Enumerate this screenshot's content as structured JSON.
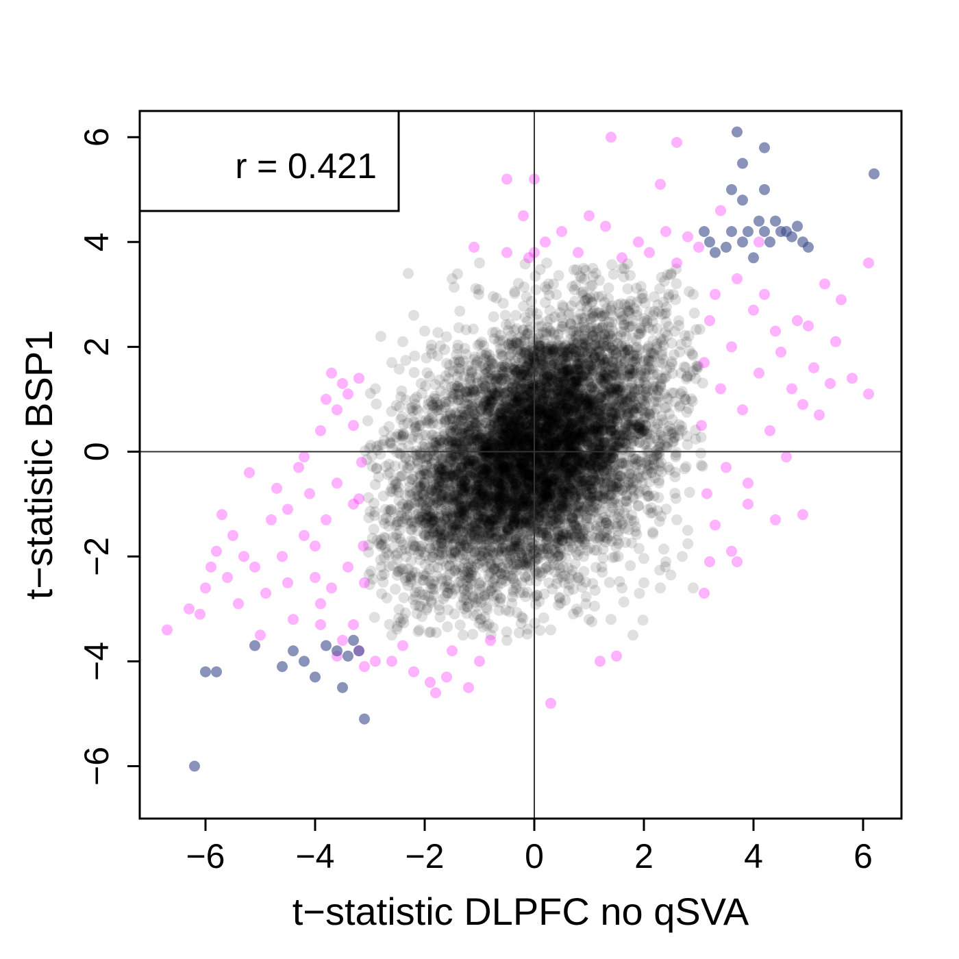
{
  "chart_data": {
    "type": "scatter",
    "title": "",
    "xlabel": "t−statistic DLPFC no qSVA",
    "ylabel": "t−statistic BSP1",
    "xlim": [
      -7.2,
      6.7
    ],
    "ylim": [
      -7.0,
      6.5
    ],
    "xticks": [
      {
        "value": -6,
        "label": "−6"
      },
      {
        "value": -4,
        "label": "−4"
      },
      {
        "value": -2,
        "label": "−2"
      },
      {
        "value": 0,
        "label": "0"
      },
      {
        "value": 2,
        "label": "2"
      },
      {
        "value": 4,
        "label": "4"
      },
      {
        "value": 6,
        "label": "6"
      }
    ],
    "yticks": [
      {
        "value": -6,
        "label": "−6"
      },
      {
        "value": -4,
        "label": "−4"
      },
      {
        "value": -2,
        "label": "−2"
      },
      {
        "value": 0,
        "label": "0"
      },
      {
        "value": 2,
        "label": "2"
      },
      {
        "value": 4,
        "label": "4"
      },
      {
        "value": 6,
        "label": "6"
      }
    ],
    "reference_lines": {
      "x": 0,
      "y": 0
    },
    "annotation": "r = 0.421",
    "annotation_placement": "top-left",
    "grid": false,
    "series": [
      {
        "color": "#000000",
        "opacity": 0.12,
        "note_cloud": {
          "center": [
            0,
            0
          ],
          "sd": [
            1.2,
            1.3
          ],
          "correlation": 0.4,
          "count": 7000,
          "x_range": [
            -3.1,
            3.1
          ],
          "y_range": [
            -3.5,
            3.6
          ]
        },
        "points": [
          [
            -2.3,
            3.4
          ],
          [
            -2.2,
            2.6
          ],
          [
            -2.0,
            2.3
          ],
          [
            -2.4,
            2.1
          ],
          [
            -2.8,
            2.2
          ],
          [
            -2.9,
            1.2
          ],
          [
            -2.6,
            1.7
          ],
          [
            1.0,
            -3.2
          ],
          [
            1.4,
            -3.2
          ],
          [
            1.8,
            -3.5
          ],
          [
            1.6,
            -2.6
          ],
          [
            2.0,
            -2.5
          ],
          [
            2.3,
            -2.6
          ],
          [
            2.4,
            -2.1
          ],
          [
            2.7,
            -2.0
          ],
          [
            2.9,
            -2.6
          ],
          [
            2.8,
            -1.5
          ],
          [
            2.6,
            -1.3
          ],
          [
            -1.5,
            3.3
          ],
          [
            -1.0,
            3.6
          ],
          [
            0.9,
            3.5
          ],
          [
            1.6,
            3.5
          ],
          [
            2.5,
            3.4
          ],
          [
            2.9,
            3.0
          ],
          [
            -2.6,
            -3.5
          ],
          [
            -2.1,
            -3.4
          ],
          [
            -1.3,
            -3.5
          ],
          [
            -0.5,
            -3.6
          ],
          [
            0.3,
            -3.4
          ]
        ]
      },
      {
        "color": "#ff00ff",
        "opacity": 0.3,
        "points": [
          [
            -6.7,
            -3.4
          ],
          [
            -6.3,
            -3.0
          ],
          [
            -6.1,
            -3.1
          ],
          [
            -6.0,
            -2.6
          ],
          [
            -5.9,
            -2.2
          ],
          [
            -5.8,
            -1.9
          ],
          [
            -5.7,
            -1.2
          ],
          [
            -5.6,
            -2.4
          ],
          [
            -5.5,
            -1.6
          ],
          [
            -5.4,
            -2.9
          ],
          [
            -5.3,
            -2.0
          ],
          [
            -5.2,
            -0.4
          ],
          [
            -5.1,
            -2.2
          ],
          [
            -5.0,
            -3.5
          ],
          [
            -4.9,
            -2.7
          ],
          [
            -4.8,
            -1.3
          ],
          [
            -4.7,
            -0.7
          ],
          [
            -4.6,
            -2.0
          ],
          [
            -4.5,
            -1.1
          ],
          [
            -4.4,
            -3.2
          ],
          [
            -4.3,
            -0.3
          ],
          [
            -4.2,
            -0.1
          ],
          [
            -4.1,
            -0.8
          ],
          [
            -4.0,
            -2.4
          ],
          [
            -3.9,
            0.4
          ],
          [
            -3.8,
            1.0
          ],
          [
            -3.7,
            1.5
          ],
          [
            -3.6,
            0.8
          ],
          [
            -3.5,
            1.3
          ],
          [
            -3.4,
            1.1
          ],
          [
            -3.3,
            0.5
          ],
          [
            -3.2,
            1.4
          ],
          [
            -4.5,
            -2.5
          ],
          [
            -4.2,
            -1.6
          ],
          [
            -4.0,
            -1.8
          ],
          [
            -3.9,
            -2.9
          ],
          [
            -3.8,
            -1.3
          ],
          [
            -3.7,
            -2.6
          ],
          [
            -3.6,
            -0.6
          ],
          [
            -3.5,
            -3.6
          ],
          [
            -3.4,
            -2.2
          ],
          [
            -3.3,
            -1.0
          ],
          [
            -3.2,
            -3.8
          ],
          [
            -3.1,
            -4.1
          ],
          [
            -3.9,
            -3.3
          ],
          [
            -3.6,
            -3.9
          ],
          [
            -3.3,
            -3.3
          ],
          [
            -3.2,
            -0.9
          ],
          [
            -3.1,
            -2.5
          ],
          [
            -3.15,
            -0.2
          ],
          [
            -3.12,
            -1.8
          ],
          [
            -2.9,
            -4.0
          ],
          [
            -2.6,
            -4.0
          ],
          [
            -2.4,
            -3.7
          ],
          [
            -2.2,
            -4.2
          ],
          [
            -1.9,
            -4.4
          ],
          [
            -1.8,
            -4.6
          ],
          [
            -1.6,
            -4.3
          ],
          [
            -1.5,
            -3.8
          ],
          [
            -1.2,
            -4.5
          ],
          [
            -1.0,
            -4.0
          ],
          [
            -0.8,
            -3.6
          ],
          [
            0.3,
            -4.8
          ],
          [
            1.5,
            -3.9
          ],
          [
            -1.1,
            3.9
          ],
          [
            -0.5,
            3.8
          ],
          [
            -0.1,
            3.7
          ],
          [
            0.2,
            4.0
          ],
          [
            0.5,
            4.2
          ],
          [
            0.8,
            3.8
          ],
          [
            1.0,
            4.5
          ],
          [
            1.3,
            4.3
          ],
          [
            1.6,
            3.7
          ],
          [
            1.9,
            4.0
          ],
          [
            2.1,
            3.8
          ],
          [
            2.4,
            4.2
          ],
          [
            2.6,
            3.6
          ],
          [
            2.8,
            4.1
          ],
          [
            3.0,
            3.9
          ],
          [
            3.05,
            0.5
          ],
          [
            3.1,
            1.7
          ],
          [
            3.2,
            2.5
          ],
          [
            3.15,
            -0.8
          ],
          [
            3.3,
            3.0
          ],
          [
            3.4,
            1.2
          ],
          [
            3.5,
            -0.3
          ],
          [
            3.6,
            2.0
          ],
          [
            3.7,
            3.3
          ],
          [
            3.8,
            0.8
          ],
          [
            3.9,
            -1.0
          ],
          [
            4.0,
            2.7
          ],
          [
            4.1,
            1.5
          ],
          [
            4.2,
            3.0
          ],
          [
            4.3,
            0.4
          ],
          [
            4.4,
            2.3
          ],
          [
            4.5,
            1.9
          ],
          [
            4.6,
            -0.1
          ],
          [
            4.7,
            1.2
          ],
          [
            4.8,
            2.5
          ],
          [
            4.9,
            0.9
          ],
          [
            5.0,
            2.4
          ],
          [
            5.1,
            1.6
          ],
          [
            5.2,
            0.7
          ],
          [
            5.3,
            3.2
          ],
          [
            5.4,
            1.3
          ],
          [
            5.5,
            2.1
          ],
          [
            5.6,
            2.9
          ],
          [
            5.8,
            1.4
          ],
          [
            6.1,
            3.6
          ],
          [
            6.1,
            1.1
          ],
          [
            3.2,
            -2.1
          ],
          [
            3.6,
            -1.9
          ],
          [
            3.3,
            -1.4
          ],
          [
            3.7,
            -2.1
          ],
          [
            4.9,
            -1.2
          ],
          [
            4.4,
            -1.3
          ],
          [
            3.1,
            -2.7
          ],
          [
            3.9,
            -0.6
          ],
          [
            4.1,
            4.0
          ],
          [
            3.4,
            4.6
          ],
          [
            2.3,
            5.1
          ],
          [
            1.4,
            6.0
          ],
          [
            0.0,
            5.2
          ],
          [
            -0.5,
            5.2
          ],
          [
            2.6,
            5.9
          ],
          [
            -0.2,
            4.5
          ],
          [
            0.0,
            3.8
          ],
          [
            1.2,
            -4.0
          ]
        ]
      },
      {
        "color": "#3a4b8c",
        "opacity": 0.6,
        "points": [
          [
            -6.2,
            -6.0
          ],
          [
            -6.0,
            -4.2
          ],
          [
            -5.8,
            -4.2
          ],
          [
            -5.1,
            -3.7
          ],
          [
            -4.6,
            -4.1
          ],
          [
            -4.4,
            -3.8
          ],
          [
            -4.2,
            -4.0
          ],
          [
            -4.0,
            -4.3
          ],
          [
            -3.8,
            -3.7
          ],
          [
            -3.6,
            -3.8
          ],
          [
            -3.5,
            -4.5
          ],
          [
            -3.4,
            -3.9
          ],
          [
            -3.3,
            -3.6
          ],
          [
            -3.2,
            -3.8
          ],
          [
            -3.1,
            -5.1
          ],
          [
            3.1,
            4.2
          ],
          [
            3.2,
            4.0
          ],
          [
            3.3,
            3.8
          ],
          [
            3.5,
            3.9
          ],
          [
            3.6,
            4.2
          ],
          [
            3.7,
            6.1
          ],
          [
            3.8,
            5.5
          ],
          [
            3.8,
            4.0
          ],
          [
            3.9,
            4.2
          ],
          [
            4.0,
            3.7
          ],
          [
            4.1,
            4.4
          ],
          [
            4.2,
            4.2
          ],
          [
            4.2,
            5.8
          ],
          [
            4.3,
            4.0
          ],
          [
            4.4,
            4.4
          ],
          [
            4.5,
            4.2
          ],
          [
            4.6,
            4.2
          ],
          [
            4.7,
            4.1
          ],
          [
            4.8,
            4.3
          ],
          [
            4.9,
            4.0
          ],
          [
            5.0,
            3.9
          ],
          [
            6.2,
            5.3
          ],
          [
            3.6,
            5.0
          ],
          [
            4.2,
            5.0
          ],
          [
            3.8,
            4.8
          ]
        ]
      }
    ]
  }
}
